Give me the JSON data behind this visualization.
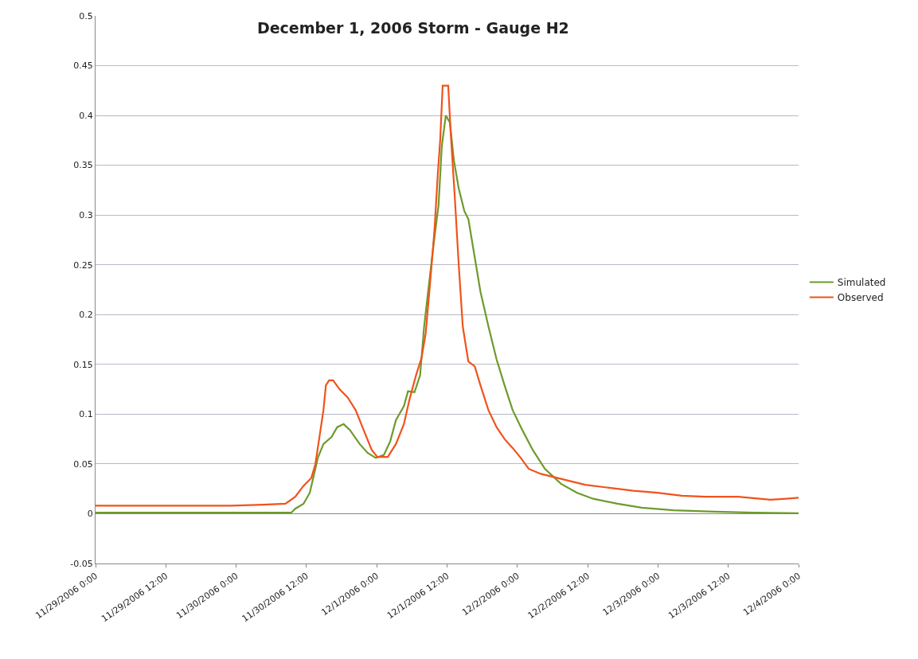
{
  "chart_data": {
    "type": "line",
    "title": "December 1, 2006 Storm - Gauge H2",
    "xlim": [
      "2006-11-29T00:00",
      "2006-12-04T00:00"
    ],
    "xticks": [
      {
        "value": "2006-11-29T00:00",
        "label": "11/29/2006 0:00"
      },
      {
        "value": "2006-11-29T12:00",
        "label": "11/29/2006 12:00"
      },
      {
        "value": "2006-11-30T00:00",
        "label": "11/30/2006 0:00"
      },
      {
        "value": "2006-11-30T12:00",
        "label": "11/30/2006 12:00"
      },
      {
        "value": "2006-12-01T00:00",
        "label": "12/1/2006 0:00"
      },
      {
        "value": "2006-12-01T12:00",
        "label": "12/1/2006 12:00"
      },
      {
        "value": "2006-12-02T00:00",
        "label": "12/2/2006 0:00"
      },
      {
        "value": "2006-12-02T12:00",
        "label": "12/2/2006 12:00"
      },
      {
        "value": "2006-12-03T00:00",
        "label": "12/3/2006 0:00"
      },
      {
        "value": "2006-12-03T12:00",
        "label": "12/3/2006 12:00"
      },
      {
        "value": "2006-12-04T00:00",
        "label": "12/4/2006 0:00"
      }
    ],
    "ylim": [
      -0.05,
      0.5
    ],
    "yticks": [
      -0.05,
      0,
      0.05,
      0.1,
      0.15,
      0.2,
      0.25,
      0.3,
      0.35,
      0.4,
      0.45,
      0.5
    ],
    "grid": "y",
    "legend": "right",
    "marker": "none",
    "line_style": "solid",
    "series": [
      {
        "name": "Simulated",
        "color": "#6f9a2c",
        "x": [
          "2006-11-29T00:00",
          "2006-11-30T09:24",
          "2006-11-30T10:05",
          "2006-11-30T11:30",
          "2006-11-30T12:34",
          "2006-11-30T13:07",
          "2006-11-30T13:56",
          "2006-11-30T14:54",
          "2006-11-30T16:17",
          "2006-11-30T17:15",
          "2006-11-30T18:21",
          "2006-11-30T19:26",
          "2006-11-30T21:05",
          "2006-11-30T22:28",
          "2006-11-30T23:50",
          "2006-12-01T01:13",
          "2006-12-01T02:19",
          "2006-12-01T03:16",
          "2006-12-01T04:38",
          "2006-12-01T05:20",
          "2006-12-01T06:26",
          "2006-12-01T07:24",
          "2006-12-01T08:05",
          "2006-12-01T08:46",
          "2006-12-01T09:44",
          "2006-12-01T10:33",
          "2006-12-01T11:06",
          "2006-12-01T11:47",
          "2006-12-01T12:29",
          "2006-12-01T13:10",
          "2006-12-01T13:59",
          "2006-12-01T14:57",
          "2006-12-01T15:38",
          "2006-12-01T16:19",
          "2006-12-01T17:42",
          "2006-12-01T19:04",
          "2006-12-01T20:27",
          "2006-12-01T21:49",
          "2006-12-01T23:12",
          "2006-12-02T00:51",
          "2006-12-02T02:38",
          "2006-12-02T04:42",
          "2006-12-02T07:27",
          "2006-12-02T10:12",
          "2006-12-02T12:57",
          "2006-12-02T17:06",
          "2006-12-02T21:12",
          "2006-12-03T02:41",
          "2006-12-03T09:35",
          "2006-12-03T16:26",
          "2006-12-04T00:00"
        ],
        "values": [
          0.001,
          0.001,
          0.005,
          0.01,
          0.021,
          0.035,
          0.056,
          0.07,
          0.077,
          0.087,
          0.09,
          0.084,
          0.07,
          0.061,
          0.056,
          0.059,
          0.073,
          0.094,
          0.108,
          0.123,
          0.122,
          0.139,
          0.188,
          0.223,
          0.272,
          0.31,
          0.369,
          0.4,
          0.393,
          0.355,
          0.327,
          0.304,
          0.296,
          0.272,
          0.223,
          0.188,
          0.155,
          0.129,
          0.104,
          0.084,
          0.064,
          0.045,
          0.03,
          0.021,
          0.015,
          0.01,
          0.006,
          0.0035,
          0.002,
          0.001,
          0.0005
        ]
      },
      {
        "name": "Observed",
        "color": "#f0531c",
        "x": [
          "2006-11-29T00:00",
          "2006-11-29T23:05",
          "2006-11-30T04:35",
          "2006-11-30T08:25",
          "2006-11-30T10:05",
          "2006-11-30T11:30",
          "2006-11-30T12:50",
          "2006-11-30T13:30",
          "2006-11-30T14:13",
          "2006-11-30T14:54",
          "2006-11-30T15:19",
          "2006-11-30T15:52",
          "2006-11-30T16:33",
          "2006-11-30T17:39",
          "2006-11-30T19:01",
          "2006-11-30T20:24",
          "2006-11-30T21:46",
          "2006-11-30T23:09",
          "2006-12-01T00:06",
          "2006-12-01T01:53",
          "2006-12-01T03:16",
          "2006-12-01T04:38",
          "2006-12-01T05:36",
          "2006-12-01T06:42",
          "2006-12-01T07:40",
          "2006-12-01T08:21",
          "2006-12-01T09:11",
          "2006-12-01T09:52",
          "2006-12-01T10:25",
          "2006-12-01T10:50",
          "2006-12-01T11:15",
          "2006-12-01T12:12",
          "2006-12-01T12:37",
          "2006-12-01T13:18",
          "2006-12-01T13:59",
          "2006-12-01T14:41",
          "2006-12-01T15:38",
          "2006-12-01T16:44",
          "2006-12-01T17:42",
          "2006-12-01T19:04",
          "2006-12-01T20:27",
          "2006-12-01T21:49",
          "2006-12-01T23:12",
          "2006-12-02T00:35",
          "2006-12-02T01:57",
          "2006-12-02T04:01",
          "2006-12-02T07:27",
          "2006-12-02T11:35",
          "2006-12-02T15:42",
          "2006-12-02T19:50",
          "2006-12-02T23:57",
          "2006-12-03T04:04",
          "2006-12-03T08:12",
          "2006-12-03T13:42",
          "2006-12-03T19:12",
          "2006-12-03T21:57",
          "2006-12-04T00:00"
        ],
        "values": [
          0.008,
          0.008,
          0.009,
          0.01,
          0.017,
          0.028,
          0.036,
          0.049,
          0.077,
          0.104,
          0.129,
          0.134,
          0.134,
          0.125,
          0.117,
          0.104,
          0.084,
          0.064,
          0.057,
          0.057,
          0.07,
          0.09,
          0.115,
          0.139,
          0.157,
          0.181,
          0.237,
          0.286,
          0.341,
          0.376,
          0.43,
          0.43,
          0.383,
          0.32,
          0.251,
          0.188,
          0.153,
          0.148,
          0.129,
          0.104,
          0.087,
          0.075,
          0.066,
          0.056,
          0.045,
          0.04,
          0.035,
          0.029,
          0.026,
          0.023,
          0.021,
          0.018,
          0.017,
          0.017,
          0.014,
          0.015,
          0.016
        ]
      }
    ]
  }
}
